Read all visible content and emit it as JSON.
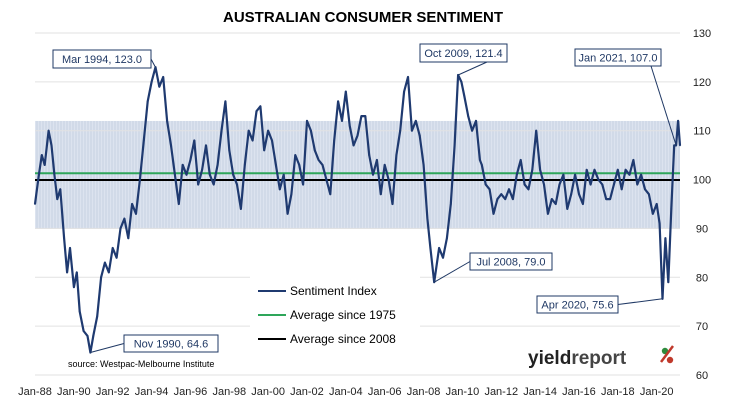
{
  "chart_data": {
    "type": "line",
    "title": "AUSTRALIAN CONSUMER SENTIMENT",
    "source": "source: Westpac-Melbourne Institute",
    "brand": {
      "part1": "yield",
      "part2": "report",
      "accent_colors": [
        "#2e8b3d",
        "#c0392b"
      ]
    },
    "x_tick_labels": [
      "Jan-88",
      "Jan-90",
      "Jan-92",
      "Jan-94",
      "Jan-96",
      "Jan-98",
      "Jan-00",
      "Jan-02",
      "Jan-04",
      "Jan-06",
      "Jan-08",
      "Jan-10",
      "Jan-12",
      "Jan-14",
      "Jan-16",
      "Jan-18",
      "Jan-20"
    ],
    "x_range": [
      1988.0,
      2021.2
    ],
    "y_ticks": [
      60,
      70,
      80,
      90,
      100,
      110,
      120,
      130
    ],
    "ylim": [
      60,
      130
    ],
    "y_axis_side": "right",
    "band": {
      "low": 89.9,
      "high": 112.0,
      "color": "#dce3ef"
    },
    "series": [
      {
        "name": "Sentiment Index",
        "color": "#1f3a70",
        "points": [
          [
            1988.0,
            95
          ],
          [
            1988.2,
            101
          ],
          [
            1988.35,
            105
          ],
          [
            1988.5,
            103
          ],
          [
            1988.7,
            110
          ],
          [
            1988.85,
            107
          ],
          [
            1989.0,
            101
          ],
          [
            1989.15,
            96
          ],
          [
            1989.3,
            98
          ],
          [
            1989.5,
            88
          ],
          [
            1989.65,
            81
          ],
          [
            1989.8,
            86
          ],
          [
            1990.0,
            78
          ],
          [
            1990.15,
            81
          ],
          [
            1990.3,
            73
          ],
          [
            1990.5,
            69
          ],
          [
            1990.7,
            68
          ],
          [
            1990.85,
            64.6
          ],
          [
            1991.0,
            68
          ],
          [
            1991.2,
            72
          ],
          [
            1991.4,
            80
          ],
          [
            1991.6,
            83
          ],
          [
            1991.8,
            81
          ],
          [
            1992.0,
            86
          ],
          [
            1992.2,
            84
          ],
          [
            1992.4,
            90
          ],
          [
            1992.6,
            92
          ],
          [
            1992.8,
            88
          ],
          [
            1993.0,
            95
          ],
          [
            1993.2,
            93
          ],
          [
            1993.4,
            100
          ],
          [
            1993.6,
            108
          ],
          [
            1993.8,
            116
          ],
          [
            1994.0,
            120
          ],
          [
            1994.2,
            123
          ],
          [
            1994.4,
            119
          ],
          [
            1994.6,
            121
          ],
          [
            1994.8,
            112
          ],
          [
            1995.0,
            107
          ],
          [
            1995.2,
            101
          ],
          [
            1995.4,
            95
          ],
          [
            1995.6,
            103
          ],
          [
            1995.8,
            101
          ],
          [
            1996.0,
            104
          ],
          [
            1996.2,
            108
          ],
          [
            1996.4,
            99
          ],
          [
            1996.6,
            102
          ],
          [
            1996.8,
            107
          ],
          [
            1997.0,
            101
          ],
          [
            1997.2,
            99
          ],
          [
            1997.4,
            103
          ],
          [
            1997.6,
            110
          ],
          [
            1997.8,
            116
          ],
          [
            1998.0,
            106
          ],
          [
            1998.2,
            101
          ],
          [
            1998.4,
            99
          ],
          [
            1998.6,
            94
          ],
          [
            1998.8,
            103
          ],
          [
            1999.0,
            110
          ],
          [
            1999.2,
            108
          ],
          [
            1999.4,
            114
          ],
          [
            1999.6,
            115
          ],
          [
            1999.8,
            106
          ],
          [
            2000.0,
            110
          ],
          [
            2000.2,
            108
          ],
          [
            2000.4,
            103
          ],
          [
            2000.6,
            98
          ],
          [
            2000.8,
            101
          ],
          [
            2001.0,
            93
          ],
          [
            2001.2,
            97
          ],
          [
            2001.4,
            105
          ],
          [
            2001.6,
            103
          ],
          [
            2001.8,
            99
          ],
          [
            2002.0,
            112
          ],
          [
            2002.2,
            110
          ],
          [
            2002.4,
            106
          ],
          [
            2002.6,
            104
          ],
          [
            2002.8,
            103
          ],
          [
            2003.0,
            100
          ],
          [
            2003.2,
            97
          ],
          [
            2003.4,
            108
          ],
          [
            2003.6,
            116
          ],
          [
            2003.8,
            112
          ],
          [
            2004.0,
            118
          ],
          [
            2004.2,
            111
          ],
          [
            2004.4,
            107
          ],
          [
            2004.6,
            109
          ],
          [
            2004.8,
            113
          ],
          [
            2005.0,
            113
          ],
          [
            2005.2,
            105
          ],
          [
            2005.4,
            101
          ],
          [
            2005.6,
            104
          ],
          [
            2005.8,
            97
          ],
          [
            2006.0,
            103
          ],
          [
            2006.2,
            100
          ],
          [
            2006.4,
            95
          ],
          [
            2006.6,
            105
          ],
          [
            2006.8,
            110
          ],
          [
            2007.0,
            118
          ],
          [
            2007.2,
            121
          ],
          [
            2007.4,
            110
          ],
          [
            2007.6,
            112
          ],
          [
            2007.8,
            109
          ],
          [
            2008.0,
            103
          ],
          [
            2008.2,
            92
          ],
          [
            2008.35,
            86
          ],
          [
            2008.55,
            79
          ],
          [
            2008.8,
            86
          ],
          [
            2009.0,
            84
          ],
          [
            2009.2,
            88
          ],
          [
            2009.4,
            95
          ],
          [
            2009.6,
            107
          ],
          [
            2009.78,
            121.4
          ],
          [
            2009.95,
            120
          ],
          [
            2010.1,
            117
          ],
          [
            2010.3,
            113
          ],
          [
            2010.5,
            110
          ],
          [
            2010.7,
            112
          ],
          [
            2010.9,
            104
          ],
          [
            2011.0,
            103
          ],
          [
            2011.2,
            99
          ],
          [
            2011.4,
            98
          ],
          [
            2011.6,
            93
          ],
          [
            2011.8,
            96
          ],
          [
            2012.0,
            97
          ],
          [
            2012.2,
            96
          ],
          [
            2012.4,
            98
          ],
          [
            2012.6,
            96
          ],
          [
            2012.8,
            101
          ],
          [
            2013.0,
            104
          ],
          [
            2013.2,
            99
          ],
          [
            2013.4,
            98
          ],
          [
            2013.6,
            102
          ],
          [
            2013.8,
            110
          ],
          [
            2014.0,
            102
          ],
          [
            2014.2,
            99
          ],
          [
            2014.4,
            93
          ],
          [
            2014.6,
            96
          ],
          [
            2014.8,
            95
          ],
          [
            2015.0,
            99
          ],
          [
            2015.2,
            101
          ],
          [
            2015.4,
            94
          ],
          [
            2015.6,
            97
          ],
          [
            2015.8,
            101
          ],
          [
            2016.0,
            97
          ],
          [
            2016.2,
            95
          ],
          [
            2016.4,
            102
          ],
          [
            2016.6,
            99
          ],
          [
            2016.8,
            102
          ],
          [
            2017.0,
            100
          ],
          [
            2017.2,
            99
          ],
          [
            2017.4,
            96
          ],
          [
            2017.6,
            96
          ],
          [
            2017.8,
            99
          ],
          [
            2018.0,
            102
          ],
          [
            2018.2,
            98
          ],
          [
            2018.4,
            102
          ],
          [
            2018.6,
            101
          ],
          [
            2018.8,
            104
          ],
          [
            2019.0,
            99
          ],
          [
            2019.2,
            101
          ],
          [
            2019.4,
            98
          ],
          [
            2019.6,
            97
          ],
          [
            2019.8,
            93
          ],
          [
            2020.0,
            95
          ],
          [
            2020.15,
            91
          ],
          [
            2020.3,
            75.6
          ],
          [
            2020.45,
            88
          ],
          [
            2020.6,
            79
          ],
          [
            2020.75,
            94
          ],
          [
            2020.9,
            107
          ],
          [
            2021.0,
            107
          ],
          [
            2021.1,
            112
          ],
          [
            2021.2,
            107
          ]
        ]
      },
      {
        "name": "Average since 1975",
        "color": "#2ea65a",
        "value": 101.3
      },
      {
        "name": "Average since 2008",
        "color": "#000000",
        "value": 99.9
      }
    ],
    "legend_position": "bottom-center",
    "annotations": [
      {
        "label": "Mar 1994, 123.0",
        "point": [
          1994.2,
          123.0
        ]
      },
      {
        "label": "Nov 1990, 64.6",
        "point": [
          1990.85,
          64.6
        ]
      },
      {
        "label": "Oct 2009, 121.4",
        "point": [
          2009.78,
          121.4
        ]
      },
      {
        "label": "Jul 2008, 79.0",
        "point": [
          2008.55,
          79.0
        ]
      },
      {
        "label": "Jan 2021, 107.0",
        "point": [
          2021.0,
          107.0
        ]
      },
      {
        "label": "Apr 2020, 75.6",
        "point": [
          2020.3,
          75.6
        ]
      }
    ]
  }
}
